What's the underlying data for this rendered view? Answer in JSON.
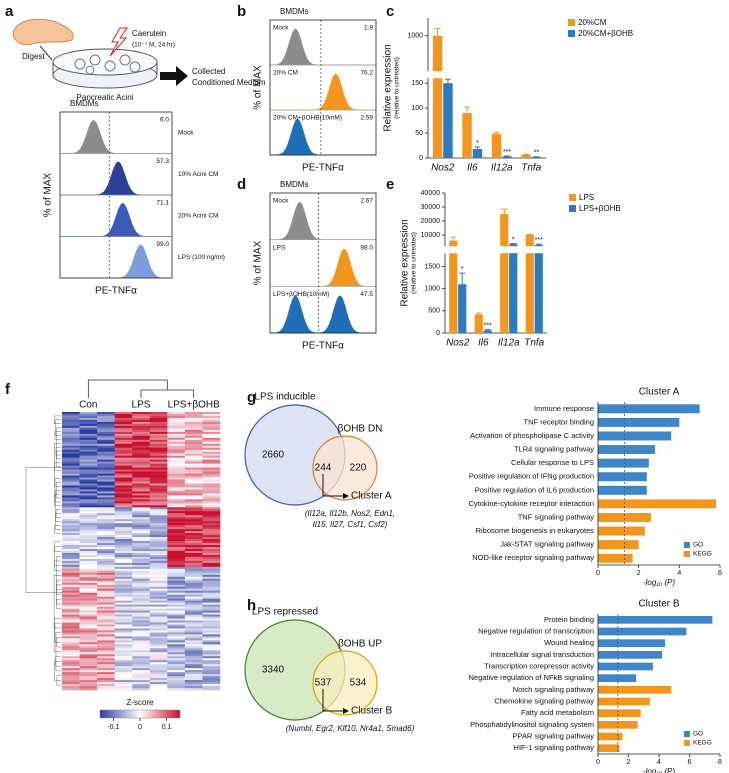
{
  "schematic": {
    "panel": "a",
    "digest": "Digest",
    "treatment": "Caerulein",
    "treatment_detail": "(10⁻⁷ M, 24 hr)",
    "tissue": "Pancreatic Acini",
    "output": [
      "Collected",
      "Conditioned Medium"
    ]
  },
  "chart_data": [
    {
      "type": "flow",
      "title": "BMDMs",
      "ylabel": "% of MAX",
      "xlabel": "PE-TNFα",
      "categories": [
        "Mock",
        "10% Acini CM",
        "20% Acini CM",
        "LPS (100 ng/ml)"
      ],
      "values": [
        6.0,
        57.3,
        71.1,
        99.0
      ],
      "value_labels": [
        "6.0",
        "57.3",
        "71.1",
        "99.0"
      ],
      "colors": [
        "#8c8c8c",
        "#2d3f97",
        "#3a5cb8",
        "#7d9fd9"
      ],
      "modes": [
        [
          1.5
        ],
        [
          2.6
        ],
        [
          2.8
        ],
        [
          3.6
        ]
      ],
      "xlim": [
        0,
        5
      ],
      "gate": 2.2,
      "labels_outside": true
    },
    {
      "type": "flow",
      "panel": "b",
      "title": "BMDMs",
      "ylabel": "% of MAX",
      "xlabel": "PE-TNFα",
      "categories": [
        "Mock",
        "20% CM",
        "20% CM+βOHB(10mM)"
      ],
      "values": [
        1.9,
        76.2,
        2.59
      ],
      "colors": [
        "#8c8c8c",
        "#f4961e",
        "#1f6fb8"
      ],
      "modes": [
        [
          1.2
        ],
        [
          3.1
        ],
        [
          1.3
        ]
      ],
      "xlim": [
        0,
        5
      ],
      "gate": 2.4,
      "labels_outside": false
    },
    {
      "type": "bar",
      "panel": "c",
      "ylabel": "Relative expression",
      "ylabel2": "(relative to untreated)",
      "categories": [
        "Nos2",
        "Il6",
        "Il12a",
        "Tnfa"
      ],
      "series": [
        {
          "name": "20%CM",
          "color": "#f4961e",
          "values": [
            1000,
            90,
            48,
            6
          ],
          "errors": [
            20,
            12,
            3,
            1
          ]
        },
        {
          "name": "20%CM+βOHB",
          "color": "#2a7bbf",
          "values": [
            150,
            18,
            3,
            2
          ],
          "errors": [
            8,
            4,
            1,
            0.5
          ],
          "significance": [
            "***",
            "*",
            "***",
            "**"
          ]
        }
      ],
      "ylim": [
        0,
        1050
      ],
      "ybreak": [
        160,
        900
      ],
      "yticks": [
        0,
        50,
        100,
        150,
        1000
      ]
    },
    {
      "type": "flow",
      "panel": "d",
      "title": "BMDMs",
      "ylabel": "% of MAX",
      "xlabel": "PE-TNFα",
      "categories": [
        "Mock",
        "LPS",
        "LPS+βOHB(10mM)"
      ],
      "values": [
        2.67,
        98.0,
        47.5
      ],
      "value_labels": [
        "2.67",
        "98.0",
        "47.5"
      ],
      "colors": [
        "#8c8c8c",
        "#f4961e",
        "#1f6fb8"
      ],
      "modes": [
        [
          1.4
        ],
        [
          3.5
        ],
        [
          1.2,
          3.3
        ]
      ],
      "xlim": [
        0,
        5
      ],
      "gate": 2.3,
      "labels_outside": false
    },
    {
      "type": "bar",
      "panel": "e",
      "ylabel": "Relative expression",
      "ylabel2": "(relative to untreated)",
      "categories": [
        "Nos2",
        "Il6",
        "Il12a",
        "Tnfa"
      ],
      "series": [
        {
          "name": "LPS",
          "color": "#f4961e",
          "values": [
            6000,
            420,
            25000,
            10000
          ],
          "errors": [
            2500,
            30,
            3500,
            400
          ]
        },
        {
          "name": "LPS+βOHB",
          "color": "#2a7bbf",
          "values": [
            1100,
            60,
            3500,
            3000
          ],
          "errors": [
            250,
            15,
            400,
            500
          ],
          "significance": [
            "*",
            "***",
            "*",
            "***"
          ]
        }
      ],
      "ylim": [
        0,
        40000
      ],
      "ybreak": [
        1800,
        2000
      ],
      "yticks": [
        0,
        500,
        1000,
        1500,
        10000,
        20000,
        30000,
        40000
      ]
    },
    {
      "type": "heatmap",
      "panel": "f",
      "columns": [
        "Con",
        "LPS",
        "LPS+βOHB"
      ],
      "colorbar_label": "Z-score",
      "colors": [
        "#2b3ca0",
        "#ffffff",
        "#c8102e"
      ],
      "clim": [
        -0.15,
        0.15
      ],
      "colorbar_ticks": [
        -0.1,
        0,
        0.1
      ]
    },
    {
      "type": "venn",
      "panel": "g",
      "sets": [
        {
          "name": "LPS inducible",
          "color": "#3a5fb0",
          "fill": "#dde3f2",
          "only": 2660
        },
        {
          "name": "βOHB DN",
          "color": "#e07a30",
          "fill": "#fbe3d2",
          "only": 220
        }
      ],
      "both": 244,
      "cluster": "Cluster A",
      "genes": [
        "(Il12a, Il12b, Nos2, Edn1,",
        "Il15, Il27, Csf1, Csf2)"
      ]
    },
    {
      "type": "hbar",
      "title": "Cluster A",
      "categories": [
        "Immune response",
        "TNF receptor binding",
        "Activation of phospholipase C activity",
        "TLR4 signaling pathway",
        "Cellular response to LPS",
        "Positive regulation of IFNg production",
        "Positive regulation of IL6 production",
        "Cytokine-cytokine receptor interaction",
        "TNF signaling pathway",
        "Ribosome biogenesis in eukaryotes",
        "Jak-STAT signaling pathway",
        "NOD-like receptor signaling pathway"
      ],
      "series": [
        {
          "name": "GO",
          "color": "#3f86c8",
          "values": [
            5.0,
            4.0,
            3.6,
            2.8,
            2.5,
            2.4,
            2.4,
            null,
            null,
            null,
            null,
            null
          ]
        },
        {
          "name": "KEGG",
          "color": "#f4961e",
          "values": [
            null,
            null,
            null,
            null,
            null,
            null,
            null,
            5.8,
            2.6,
            2.3,
            2.0,
            1.7
          ]
        }
      ],
      "xlim": [
        0,
        6
      ],
      "xticks": [
        0,
        2,
        4,
        6
      ],
      "xlabel": "-log₁₀ (P)",
      "threshold": 1.3
    },
    {
      "type": "venn",
      "panel": "h",
      "sets": [
        {
          "name": "LPS repressed",
          "color": "#4a7a2e",
          "fill": "#d7ebc7",
          "only": 3340
        },
        {
          "name": "βOHB UP",
          "color": "#d9a400",
          "fill": "#fbeebd",
          "only": 534
        }
      ],
      "both": 537,
      "cluster": "Cluster B",
      "genes": [
        "(Numbl, Egr2, Klf10, Nr4a1, Smad6)"
      ]
    },
    {
      "type": "hbar",
      "title": "Cluster B",
      "categories": [
        "Protein binding",
        "Negative regulation of transcription",
        "Wound healing",
        "Intracellular signal transduction",
        "Transcription corepressor activity",
        "Negative regulation of NFkB signaling",
        "Notch signaling pathway",
        "Chemokine signaling pathway",
        "Fatty acid metabolism",
        "Phosphatidylinositol signaling system",
        "PPAR signaling pathway",
        "HIF-1 signaling pathway"
      ],
      "series": [
        {
          "name": "GO",
          "color": "#3f86c8",
          "values": [
            7.5,
            5.8,
            4.4,
            4.2,
            3.6,
            2.5,
            null,
            null,
            null,
            null,
            null,
            null
          ]
        },
        {
          "name": "KEGG",
          "color": "#f4961e",
          "values": [
            null,
            null,
            null,
            null,
            null,
            null,
            4.8,
            3.4,
            2.8,
            2.6,
            1.6,
            1.4
          ]
        }
      ],
      "xlim": [
        0,
        8
      ],
      "xticks": [
        0,
        2,
        4,
        6,
        8
      ],
      "xlabel": "-log₁₀ (P)",
      "threshold": 1.3
    }
  ]
}
